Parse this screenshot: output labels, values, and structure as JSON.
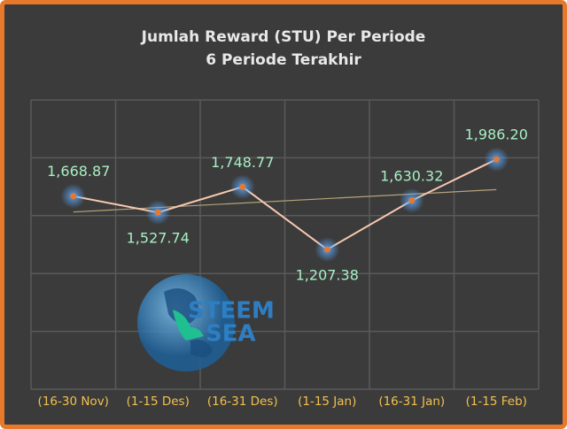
{
  "chart_data": {
    "type": "line",
    "title": "Jumlah Reward (STU) Per Periode",
    "subtitle": "6 Periode Terakhir",
    "categories": [
      "(16-30 Nov)",
      "(1-15 Des)",
      "(16-31 Des)",
      "(1-15 Jan)",
      "(16-31 Jan)",
      "(1-15 Feb)"
    ],
    "values": [
      1668.87,
      1527.74,
      1748.77,
      1207.38,
      1630.32,
      1986.2
    ],
    "value_labels": [
      "1,668.87",
      "1,527.74",
      "1,748.77",
      "1,207.38",
      "1,630.32",
      "1,986.20"
    ],
    "color": "#f7c9b0",
    "ylim": [
      0,
      2500
    ],
    "grid": true,
    "trendline": true,
    "logo_text": [
      "STEEM",
      "SEA"
    ]
  }
}
